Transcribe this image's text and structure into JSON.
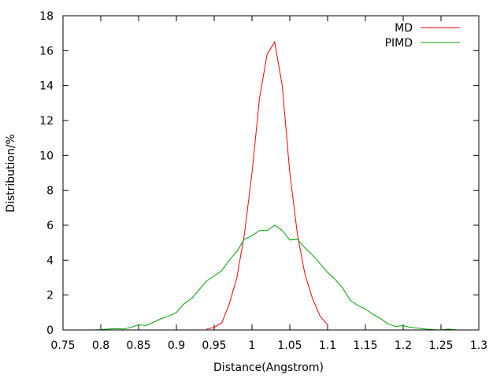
{
  "chart_data": {
    "type": "line",
    "xlabel": "Distance(Angstrom)",
    "ylabel": "Distribution/%",
    "xlim": [
      0.75,
      1.3
    ],
    "ylim": [
      0,
      18
    ],
    "xticks": [
      "0.75",
      "0.8",
      "0.85",
      "0.9",
      "0.95",
      "1",
      "1.05",
      "1.1",
      "1.15",
      "1.2",
      "1.25",
      "1.3"
    ],
    "yticks": [
      "0",
      "2",
      "4",
      "6",
      "8",
      "10",
      "12",
      "14",
      "16",
      "18"
    ],
    "grid": false,
    "legend_position": "top-right",
    "series": [
      {
        "name": "MD",
        "color": "#ff0000",
        "x": [
          0.94,
          0.95,
          0.96,
          0.97,
          0.98,
          0.99,
          1.0,
          1.01,
          1.02,
          1.03,
          1.04,
          1.05,
          1.06,
          1.07,
          1.08,
          1.09,
          1.1
        ],
        "y": [
          0.05,
          0.15,
          0.4,
          1.5,
          3.0,
          5.5,
          9.0,
          13.3,
          15.8,
          16.5,
          14.0,
          9.0,
          5.5,
          3.2,
          1.8,
          0.8,
          0.3
        ]
      },
      {
        "name": "PIMD",
        "color": "#00a000",
        "x": [
          0.79,
          0.8,
          0.81,
          0.82,
          0.83,
          0.84,
          0.85,
          0.86,
          0.87,
          0.88,
          0.89,
          0.9,
          0.91,
          0.92,
          0.93,
          0.94,
          0.95,
          0.96,
          0.97,
          0.98,
          0.99,
          1.0,
          1.01,
          1.02,
          1.03,
          1.04,
          1.05,
          1.06,
          1.07,
          1.08,
          1.09,
          1.1,
          1.11,
          1.12,
          1.13,
          1.14,
          1.15,
          1.16,
          1.17,
          1.18,
          1.19,
          1.2,
          1.21,
          1.22,
          1.23,
          1.24,
          1.25,
          1.26,
          1.27
        ],
        "y": [
          0.0,
          0.02,
          0.05,
          0.08,
          0.05,
          0.15,
          0.3,
          0.25,
          0.45,
          0.65,
          0.8,
          1.0,
          1.5,
          1.8,
          2.3,
          2.8,
          3.1,
          3.4,
          4.0,
          4.5,
          5.2,
          5.4,
          5.7,
          5.7,
          6.0,
          5.7,
          5.15,
          5.2,
          4.7,
          4.3,
          3.8,
          3.3,
          2.9,
          2.4,
          1.7,
          1.4,
          1.2,
          0.9,
          0.65,
          0.35,
          0.2,
          0.25,
          0.15,
          0.1,
          0.05,
          0.02,
          0.0,
          0.05,
          0.0
        ]
      }
    ]
  }
}
